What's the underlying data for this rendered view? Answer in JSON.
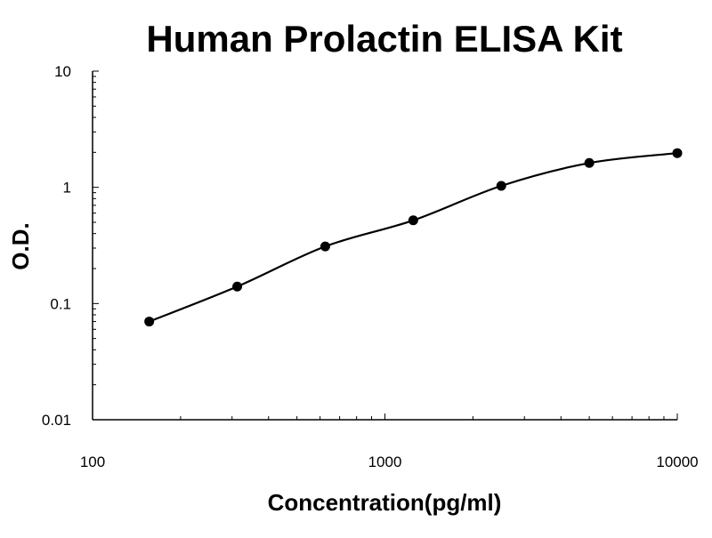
{
  "chart_data": {
    "type": "scatter",
    "title": "Human Prolactin ELISA Kit",
    "xlabel": "Concentration(pg/ml)",
    "ylabel": "O.D.",
    "x_scale": "log",
    "y_scale": "log",
    "xlim": [
      100,
      10000
    ],
    "ylim": [
      0.01,
      10
    ],
    "x_ticks": [
      {
        "value": 100,
        "label": "100"
      },
      {
        "value": 1000,
        "label": "1000"
      },
      {
        "value": 10000,
        "label": "10000"
      }
    ],
    "y_ticks": [
      {
        "value": 0.01,
        "label": "0.01"
      },
      {
        "value": 0.1,
        "label": "0.1"
      },
      {
        "value": 1,
        "label": "1"
      },
      {
        "value": 10,
        "label": "10"
      }
    ],
    "grid": false,
    "legend": "none",
    "series": [
      {
        "x": [
          156.25,
          312.5,
          625,
          1250,
          2500,
          5000,
          10000
        ],
        "y": [
          0.07,
          0.14,
          0.31,
          0.52,
          1.03,
          1.62,
          1.97
        ],
        "color": "#000000",
        "fit_curve": true
      }
    ]
  }
}
